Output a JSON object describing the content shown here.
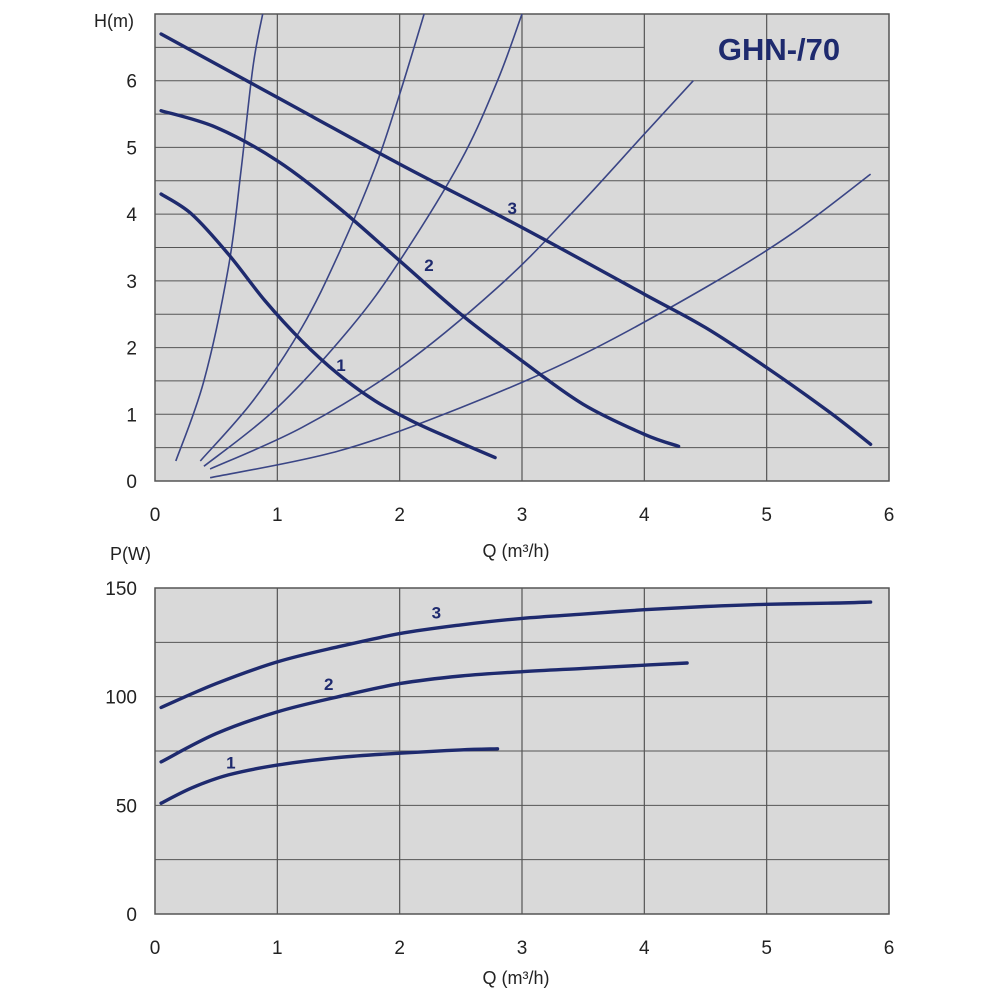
{
  "colors": {
    "plot_background": "#d9d9d9",
    "grid": "#555555",
    "curve": "#1e2a6e",
    "system_curve": "#3a4585",
    "text": "#222222"
  },
  "chart_data": [
    {
      "type": "line",
      "title": "GHN-/70",
      "xlabel": "Q (m³/h)",
      "ylabel": "H(m)",
      "xlim": [
        0,
        6
      ],
      "ylim": [
        0,
        7
      ],
      "x_ticks": [
        "0",
        "1",
        "2",
        "3",
        "4",
        "5",
        "6"
      ],
      "y_ticks": [
        "0",
        "1",
        "2",
        "3",
        "4",
        "5",
        "6"
      ],
      "grid": true,
      "series": [
        {
          "name": "1",
          "x": [
            0.05,
            0.3,
            0.6,
            0.9,
            1.2,
            1.5,
            1.8,
            2.1,
            2.4,
            2.78
          ],
          "y": [
            4.3,
            4.0,
            3.4,
            2.7,
            2.1,
            1.6,
            1.2,
            0.9,
            0.65,
            0.35
          ]
        },
        {
          "name": "2",
          "x": [
            0.05,
            0.5,
            1.0,
            1.5,
            2.0,
            2.5,
            3.0,
            3.5,
            4.0,
            4.28
          ],
          "y": [
            5.55,
            5.3,
            4.8,
            4.1,
            3.3,
            2.5,
            1.8,
            1.15,
            0.7,
            0.52
          ]
        },
        {
          "name": "3",
          "x": [
            0.05,
            1.0,
            2.0,
            3.0,
            4.0,
            4.5,
            5.0,
            5.5,
            5.85
          ],
          "y": [
            6.7,
            5.75,
            4.75,
            3.8,
            2.8,
            2.3,
            1.7,
            1.05,
            0.55
          ]
        }
      ],
      "system_curves": [
        {
          "x": [
            0.17,
            0.4,
            0.6,
            0.7,
            0.8,
            0.88
          ],
          "y": [
            0.3,
            1.5,
            3.2,
            4.6,
            6.2,
            7.0
          ]
        },
        {
          "x": [
            0.37,
            0.8,
            1.2,
            1.5,
            1.8,
            2.0,
            2.2
          ],
          "y": [
            0.3,
            1.2,
            2.3,
            3.4,
            4.7,
            5.8,
            7.0
          ]
        },
        {
          "x": [
            0.4,
            1.0,
            1.6,
            2.0,
            2.5,
            2.8,
            3.0
          ],
          "y": [
            0.22,
            1.1,
            2.3,
            3.3,
            4.8,
            6.0,
            7.0
          ]
        },
        {
          "x": [
            0.45,
            1.2,
            2.0,
            2.8,
            3.4,
            4.0,
            4.4
          ],
          "y": [
            0.18,
            0.8,
            1.7,
            2.9,
            4.0,
            5.2,
            6.0
          ]
        },
        {
          "x": [
            0.45,
            1.5,
            2.5,
            3.5,
            4.5,
            5.2,
            5.85
          ],
          "y": [
            0.05,
            0.45,
            1.1,
            1.9,
            2.9,
            3.7,
            4.6
          ]
        }
      ]
    },
    {
      "type": "line",
      "title": "",
      "xlabel": "Q (m³/h)",
      "ylabel": "P(W)",
      "xlim": [
        0,
        6
      ],
      "ylim": [
        0,
        150
      ],
      "x_ticks": [
        "0",
        "1",
        "2",
        "3",
        "4",
        "5",
        "6"
      ],
      "y_ticks": [
        "0",
        "50",
        "100",
        "150"
      ],
      "grid": true,
      "series": [
        {
          "name": "1",
          "x": [
            0.05,
            0.3,
            0.6,
            1.0,
            1.5,
            2.0,
            2.5,
            2.8
          ],
          "y": [
            51,
            58,
            64,
            68.5,
            72,
            74,
            75.5,
            76
          ]
        },
        {
          "name": "2",
          "x": [
            0.05,
            0.5,
            1.0,
            1.5,
            2.0,
            2.5,
            3.0,
            3.5,
            4.0,
            4.35
          ],
          "y": [
            70,
            83,
            93,
            100,
            106,
            109.5,
            111.5,
            113,
            114.5,
            115.5
          ]
        },
        {
          "name": "3",
          "x": [
            0.05,
            0.5,
            1.0,
            1.5,
            2.0,
            2.5,
            3.0,
            3.5,
            4.0,
            4.5,
            5.0,
            5.5,
            5.85
          ],
          "y": [
            95,
            106,
            116,
            123,
            129,
            133,
            136,
            138,
            140,
            141.5,
            142.5,
            143,
            143.5
          ]
        }
      ]
    }
  ]
}
